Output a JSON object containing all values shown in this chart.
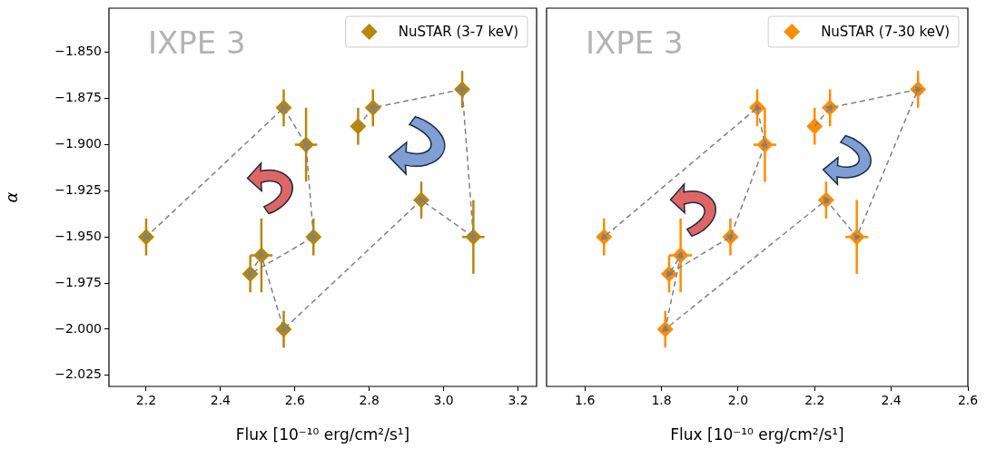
{
  "chart_data": [
    {
      "type": "scatter",
      "annotations": [
        "IXPE 3"
      ],
      "xlabel": "Flux [10⁻¹⁰ erg/cm²/s¹]",
      "ylabel": "α",
      "series": [
        {
          "name": "NuSTAR (3-7 keV)",
          "color": "#b8860b",
          "marker": "diamond",
          "x": [
            2.77,
            2.81,
            3.05,
            3.08,
            2.94,
            2.57,
            2.51,
            2.48,
            2.65,
            2.63,
            2.57,
            2.2
          ],
          "values": [
            -1.89,
            -1.88,
            -1.87,
            -1.95,
            -1.93,
            -2.0,
            -1.96,
            -1.97,
            -1.95,
            -1.9,
            -1.88,
            -1.95
          ],
          "errors": [
            0.01,
            0.01,
            0.01,
            0.02,
            0.01,
            0.01,
            0.02,
            0.01,
            0.01,
            0.02,
            0.01,
            0.01
          ],
          "xerrors": [
            null,
            null,
            null,
            0.03,
            null,
            null,
            0.03,
            null,
            null,
            0.03,
            null,
            null
          ]
        },
        {
          "type": "line",
          "color": "#808080",
          "marker": "triangle",
          "line_style": "dashed",
          "x": [
            2.77,
            2.81,
            3.05,
            3.08,
            2.94,
            2.57,
            2.51,
            2.48,
            2.65,
            2.63,
            2.57,
            2.2
          ],
          "values": [
            -1.89,
            -1.88,
            -1.87,
            -1.95,
            -1.93,
            -2.0,
            -1.96,
            -1.97,
            -1.95,
            -1.9,
            -1.88,
            -1.95
          ]
        }
      ],
      "xlim": [
        2.1,
        3.25
      ],
      "xticks": [
        2.2,
        2.4,
        2.6,
        2.8,
        {
          "value": 3.0,
          "label": "3.0"
        },
        3.2
      ],
      "ylim": [
        -2.031,
        -1.826
      ],
      "yticks": [
        {
          "value": -2.025,
          "label": "−2.025"
        },
        {
          "value": -2.0,
          "label": "−2.000"
        },
        {
          "value": -1.975,
          "label": "−1.975"
        },
        {
          "value": -1.95,
          "label": "−1.950"
        },
        {
          "value": -1.925,
          "label": "−1.925"
        },
        {
          "value": -1.9,
          "label": "−1.900"
        },
        {
          "value": -1.875,
          "label": "−1.875"
        },
        {
          "value": -1.85,
          "label": "−1.850"
        }
      ],
      "grid": false,
      "legend": "top right"
    },
    {
      "type": "scatter",
      "annotations": [
        "IXPE 3"
      ],
      "xlabel": "Flux [10⁻¹⁰ erg/cm²/s¹]",
      "series": [
        {
          "name": "NuSTAR (7-30 keV)",
          "color": "#ff8c00",
          "marker": "diamond",
          "x": [
            2.2,
            2.24,
            2.47,
            2.31,
            2.23,
            1.81,
            1.85,
            1.82,
            1.98,
            2.07,
            2.05,
            1.65
          ],
          "values": [
            -1.89,
            -1.88,
            -1.87,
            -1.95,
            -1.93,
            -2.0,
            -1.96,
            -1.97,
            -1.95,
            -1.9,
            -1.88,
            -1.95
          ],
          "errors": [
            0.01,
            0.01,
            0.01,
            0.02,
            0.01,
            0.01,
            0.02,
            0.01,
            0.01,
            0.02,
            0.01,
            0.01
          ],
          "xerrors": [
            null,
            null,
            null,
            0.03,
            null,
            null,
            0.03,
            null,
            null,
            0.03,
            null,
            null
          ]
        },
        {
          "type": "line",
          "color": "#808080",
          "marker": "triangle",
          "line_style": "dashed",
          "x": [
            2.2,
            2.24,
            2.47,
            2.31,
            2.23,
            1.81,
            1.85,
            1.82,
            1.98,
            2.07,
            2.05,
            1.65
          ],
          "values": [
            -1.89,
            -1.88,
            -1.87,
            -1.95,
            -1.93,
            -2.0,
            -1.96,
            -1.97,
            -1.95,
            -1.9,
            -1.88,
            -1.95
          ]
        }
      ],
      "xlim": [
        1.5,
        2.6
      ],
      "xticks": [
        1.6,
        1.8,
        {
          "value": 2.0,
          "label": "2.0"
        },
        2.2,
        2.4,
        2.6
      ],
      "ylim": [
        -2.031,
        -1.826
      ],
      "grid": false,
      "legend": "top right",
      "tick_labels": "x"
    }
  ]
}
